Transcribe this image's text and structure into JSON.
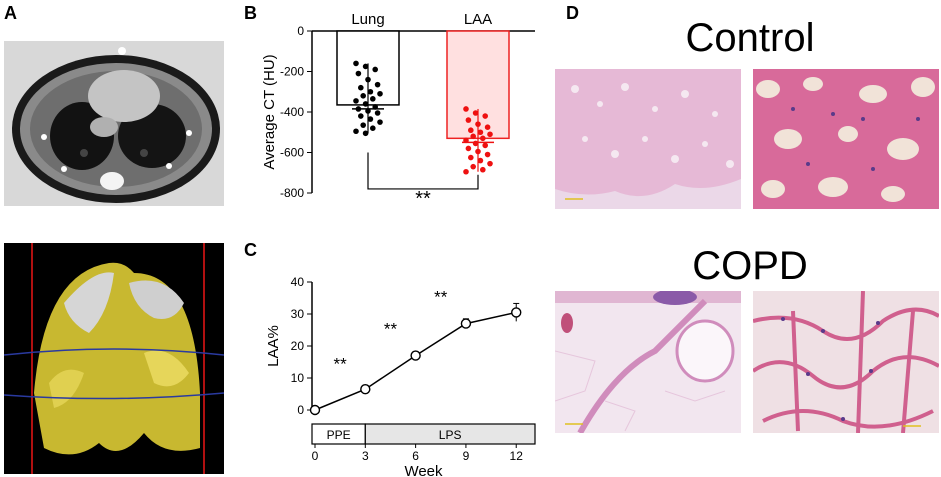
{
  "panels": {
    "a": "A",
    "b": "B",
    "c": "C",
    "d": "D"
  },
  "chart_b": {
    "type": "bar",
    "categories": [
      "Lung",
      "LAA"
    ],
    "bar_values": [
      -365,
      -530
    ],
    "bar_colors": [
      "#ffffff",
      "#ffe0e0"
    ],
    "edge_colors": [
      "#000000",
      "#ee2222"
    ],
    "point_colors": [
      "#000000",
      "#ee1111"
    ],
    "points": [
      [
        -160,
        -175,
        -190,
        -210,
        -240,
        -265,
        -280,
        -300,
        -310,
        -320,
        -335,
        -345,
        -360,
        -375,
        -385,
        -395,
        -405,
        -420,
        -435,
        -450,
        -465,
        -480,
        -495,
        -505
      ],
      [
        -385,
        -405,
        -420,
        -440,
        -460,
        -475,
        -490,
        -500,
        -510,
        -520,
        -530,
        -540,
        -555,
        -565,
        -580,
        -595,
        -610,
        -625,
        -640,
        -655,
        -670,
        -685,
        -695
      ]
    ],
    "ylabel": "Average CT (HU)",
    "yticks": [
      "0",
      "-200",
      "-400",
      "-600",
      "-800"
    ],
    "ylim": [
      -800,
      0
    ],
    "sig": "**"
  },
  "chart_c": {
    "type": "line",
    "x": [
      0,
      3,
      6,
      9,
      12
    ],
    "y": [
      0,
      6.5,
      17,
      27,
      30.5
    ],
    "err": [
      0.5,
      1.2,
      1.2,
      1.5,
      2.8
    ],
    "xticks": [
      "0",
      "3",
      "6",
      "9",
      "12"
    ],
    "yticks": [
      "0",
      "10",
      "20",
      "30",
      "40"
    ],
    "ylim": [
      0,
      40
    ],
    "xlabel": "Week",
    "ylabel": "LAA%",
    "sig_markers": [
      "**",
      "**",
      "**"
    ],
    "phases": [
      "PPE",
      "LPS"
    ]
  },
  "panel_d": {
    "control_label": "Control",
    "copd_label": "COPD"
  }
}
